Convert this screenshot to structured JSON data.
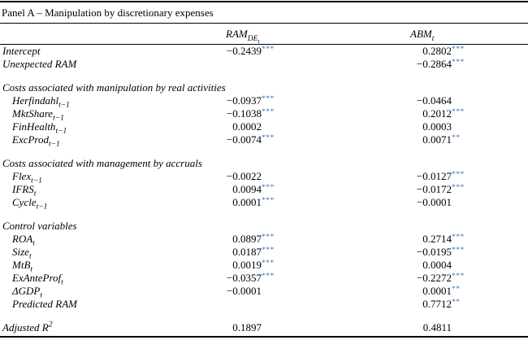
{
  "star_color": "#3a74b8",
  "panel_title": "Panel A – Manipulation by discretionary expenses",
  "columns": [
    {
      "base": "RAM",
      "sub": "DE",
      "subsub": "t"
    },
    {
      "base": "ABM",
      "sub": "t",
      "subsub": ""
    }
  ],
  "table": {
    "sections": [
      {
        "header": null,
        "rows": [
          {
            "indent": false,
            "label": {
              "base": "Intercept"
            },
            "v1": {
              "num": "−0.2439",
              "stars": "***"
            },
            "v2": {
              "num": "0.2802",
              "stars": "***"
            }
          },
          {
            "indent": false,
            "label": {
              "base": "Unexpected RAM"
            },
            "v1": null,
            "v2": {
              "num": "−0.2864",
              "stars": "***"
            }
          }
        ]
      },
      {
        "header": "Costs associated with manipulation by real activities",
        "rows": [
          {
            "indent": true,
            "label": {
              "base": "Herfindahl",
              "sub": "t−1"
            },
            "v1": {
              "num": "−0.0937",
              "stars": "***"
            },
            "v2": {
              "num": "−0.0464",
              "stars": ""
            }
          },
          {
            "indent": true,
            "label": {
              "base": "MktShare",
              "sub": "t−1"
            },
            "v1": {
              "num": "−0.1038",
              "stars": "***"
            },
            "v2": {
              "num": "0.2012",
              "stars": "***"
            }
          },
          {
            "indent": true,
            "label": {
              "base": "FinHealth",
              "sub": "t−1"
            },
            "v1": {
              "num": "0.0002",
              "stars": ""
            },
            "v2": {
              "num": "0.0003",
              "stars": ""
            }
          },
          {
            "indent": true,
            "label": {
              "base": "ExcProd",
              "sub": "t−1"
            },
            "v1": {
              "num": "−0.0074",
              "stars": "***"
            },
            "v2": {
              "num": "0.0071",
              "stars": "**"
            }
          }
        ]
      },
      {
        "header": "Costs associated with management by accruals",
        "rows": [
          {
            "indent": true,
            "label": {
              "base": "Flex",
              "sub": "t−1"
            },
            "v1": {
              "num": "−0.0022",
              "stars": ""
            },
            "v2": {
              "num": "−0.0127",
              "stars": "***"
            }
          },
          {
            "indent": true,
            "label": {
              "base": "IFRS",
              "sub": "t"
            },
            "v1": {
              "num": "0.0094",
              "stars": "***"
            },
            "v2": {
              "num": "−0.0172",
              "stars": "***"
            }
          },
          {
            "indent": true,
            "label": {
              "base": "Cycle",
              "sub": "t−1"
            },
            "v1": {
              "num": "0.0001",
              "stars": "***"
            },
            "v2": {
              "num": "−0.0001",
              "stars": ""
            }
          }
        ]
      },
      {
        "header": "Control variables",
        "rows": [
          {
            "indent": true,
            "label": {
              "base": "ROA",
              "sub": "t"
            },
            "v1": {
              "num": "0.0897",
              "stars": "***"
            },
            "v2": {
              "num": "0.2714",
              "stars": "***"
            }
          },
          {
            "indent": true,
            "label": {
              "base": "Size",
              "sub": "t"
            },
            "v1": {
              "num": "0.0187",
              "stars": "***"
            },
            "v2": {
              "num": "−0.0195",
              "stars": "***"
            }
          },
          {
            "indent": true,
            "label": {
              "base": "MtB",
              "sub": "t"
            },
            "v1": {
              "num": "0.0019",
              "stars": "***"
            },
            "v2": {
              "num": "0.0004",
              "stars": ""
            }
          },
          {
            "indent": true,
            "label": {
              "base": "ExAnteProf",
              "sub": "t"
            },
            "v1": {
              "num": "−0.0357",
              "stars": "***"
            },
            "v2": {
              "num": "−0.2272",
              "stars": "***"
            }
          },
          {
            "indent": true,
            "label": {
              "base": "ΔGDP",
              "sub": "t"
            },
            "v1": {
              "num": "−0.0001",
              "stars": ""
            },
            "v2": {
              "num": "0.0001",
              "stars": "**"
            }
          },
          {
            "indent": true,
            "label": {
              "base": "Predicted RAM"
            },
            "v1": null,
            "v2": {
              "num": "0.7712",
              "stars": "**"
            }
          }
        ]
      },
      {
        "header": null,
        "rows": [
          {
            "indent": false,
            "label": {
              "base": "Adjusted R",
              "sup": "2"
            },
            "v1": {
              "num": "0.1897",
              "stars": ""
            },
            "v2": {
              "num": "0.4811",
              "stars": ""
            }
          }
        ]
      }
    ]
  }
}
